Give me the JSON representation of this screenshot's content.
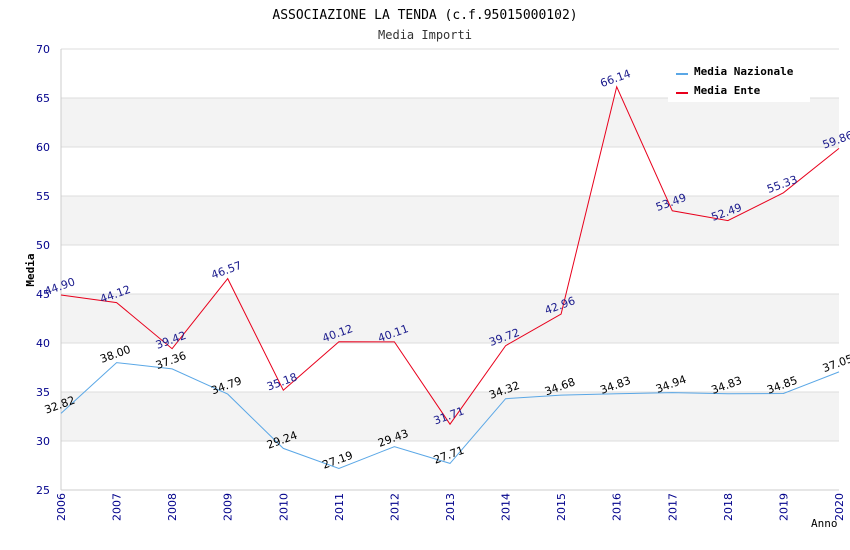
{
  "chart_data": {
    "type": "line",
    "title": "ASSOCIAZIONE LA TENDA (c.f.95015000102)",
    "subtitle": "Media Importi",
    "xlabel": "Anno",
    "ylabel": "Media",
    "ylim": [
      25,
      70
    ],
    "yticks": [
      25,
      30,
      35,
      40,
      45,
      50,
      55,
      60,
      65,
      70
    ],
    "grid": true,
    "legend_position": "top-right",
    "categories": [
      "2006",
      "2007",
      "2008",
      "2009",
      "2010",
      "2011",
      "2012",
      "2013",
      "2014",
      "2015",
      "2016",
      "2017",
      "2018",
      "2019",
      "2020"
    ],
    "series": [
      {
        "name": "Media Nazionale",
        "color": "#5aa7e6",
        "label_color": "#000000",
        "values": [
          32.82,
          38.0,
          37.36,
          34.79,
          29.24,
          27.19,
          29.43,
          27.71,
          34.32,
          34.68,
          34.83,
          34.94,
          34.83,
          34.85,
          37.05
        ],
        "labels": [
          "32.82",
          "38.00",
          "37.36",
          "34.79",
          "29.24",
          "27.19",
          "29.43",
          "27.71",
          "34.32",
          "34.68",
          "34.83",
          "34.94",
          "34.83",
          "34.85",
          "37.05"
        ]
      },
      {
        "name": "Media Ente",
        "color": "#e8001c",
        "label_color": "#1a1a8c",
        "values": [
          44.9,
          44.12,
          39.42,
          46.57,
          35.18,
          40.12,
          40.11,
          31.71,
          39.72,
          42.96,
          66.14,
          53.49,
          52.49,
          55.33,
          59.86
        ],
        "labels": [
          "44.90",
          "44.12",
          "39.42",
          "46.57",
          "35.18",
          "40.12",
          "40.11",
          "31.71",
          "39.72",
          "42.96",
          "66.14",
          "53.49",
          "52.49",
          "55.33",
          "59.86"
        ]
      }
    ],
    "colors": {
      "axis_text": "#00008b",
      "band": "#f3f3f3",
      "grid": "#dddddd"
    }
  }
}
